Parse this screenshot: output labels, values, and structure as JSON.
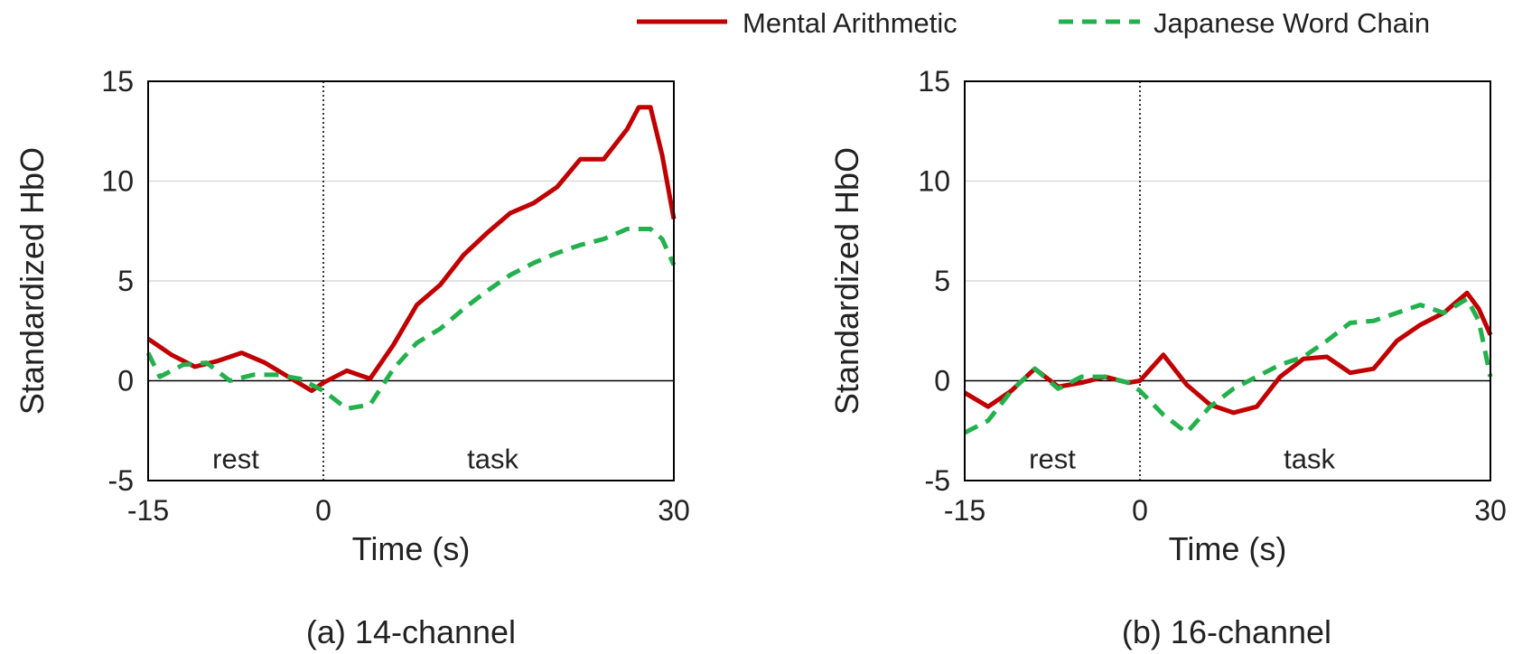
{
  "legend": {
    "placement": "top-right",
    "items": [
      {
        "label": "Mental Arithmetic",
        "color": "#c00000",
        "style": "solid"
      },
      {
        "label": "Japanese Word Chain",
        "color": "#22b14c",
        "style": "dashed"
      }
    ]
  },
  "colors": {
    "mental": "#c00000",
    "word": "#22b14c",
    "grid": "#d9d9d9",
    "axis": "#000000"
  },
  "chart_data": [
    {
      "type": "line",
      "caption": "(a) 14-channel",
      "xlabel": "Time (s)",
      "ylabel": "Standardized HbO",
      "xlim": [
        -15,
        30
      ],
      "ylim": [
        -5,
        15
      ],
      "xticks": [
        -15,
        0,
        30
      ],
      "xtick_labels": [
        "-15",
        "0",
        "30"
      ],
      "yticks": [
        -5,
        0,
        5,
        10,
        15
      ],
      "ytick_labels": [
        "-5",
        "0",
        "5",
        "10",
        "15"
      ],
      "grid": true,
      "divider_x": 0,
      "annotations": [
        {
          "text": "rest",
          "x": -7.5,
          "y": -3.9
        },
        {
          "text": "task",
          "x": 14.5,
          "y": -3.9
        }
      ],
      "series": [
        {
          "name": "Mental Arithmetic",
          "x": [
            -15,
            -13,
            -11,
            -9,
            -7,
            -5,
            -3,
            -1,
            0,
            2,
            4,
            6,
            8,
            10,
            12,
            14,
            16,
            18,
            20,
            22,
            24,
            26,
            27,
            28,
            29,
            30
          ],
          "y": [
            2.1,
            1.3,
            0.7,
            1.0,
            1.4,
            0.9,
            0.2,
            -0.5,
            -0.1,
            0.5,
            0.1,
            1.8,
            3.8,
            4.8,
            6.3,
            7.4,
            8.4,
            8.9,
            9.7,
            11.1,
            11.1,
            12.6,
            13.7,
            13.7,
            11.3,
            8.1
          ]
        },
        {
          "name": "Japanese Word Chain",
          "x": [
            -15,
            -14,
            -12,
            -10,
            -8,
            -6,
            -4,
            -2,
            0,
            2,
            4,
            6,
            8,
            10,
            12,
            14,
            16,
            18,
            20,
            22,
            24,
            26,
            28,
            29,
            30
          ],
          "y": [
            1.4,
            0.2,
            0.8,
            0.9,
            0.0,
            0.3,
            0.3,
            0.1,
            -0.5,
            -1.4,
            -1.2,
            0.6,
            1.9,
            2.6,
            3.6,
            4.5,
            5.3,
            5.9,
            6.4,
            6.8,
            7.1,
            7.6,
            7.6,
            7.1,
            5.8
          ]
        }
      ]
    },
    {
      "type": "line",
      "caption": "(b) 16-channel",
      "xlabel": "Time (s)",
      "ylabel": "Standardized HbO",
      "xlim": [
        -15,
        30
      ],
      "ylim": [
        -5,
        15
      ],
      "xticks": [
        -15,
        0,
        30
      ],
      "xtick_labels": [
        "-15",
        "0",
        "30"
      ],
      "yticks": [
        -5,
        0,
        5,
        10,
        15
      ],
      "ytick_labels": [
        "-5",
        "0",
        "5",
        "10",
        "15"
      ],
      "grid": true,
      "divider_x": 0,
      "annotations": [
        {
          "text": "rest",
          "x": -7.5,
          "y": -3.9
        },
        {
          "text": "task",
          "x": 14.5,
          "y": -3.9
        }
      ],
      "series": [
        {
          "name": "Mental Arithmetic",
          "x": [
            -15,
            -13,
            -11,
            -9,
            -7,
            -5,
            -3,
            -1,
            0,
            2,
            4,
            6,
            8,
            10,
            12,
            14,
            16,
            18,
            20,
            22,
            24,
            26,
            28,
            29,
            30
          ],
          "y": [
            -0.6,
            -1.3,
            -0.5,
            0.6,
            -0.3,
            -0.1,
            0.2,
            -0.1,
            0.0,
            1.3,
            -0.2,
            -1.2,
            -1.6,
            -1.3,
            0.2,
            1.1,
            1.2,
            0.4,
            0.6,
            2.0,
            2.8,
            3.4,
            4.4,
            3.6,
            2.3
          ]
        },
        {
          "name": "Japanese Word Chain",
          "x": [
            -15,
            -13,
            -11,
            -9,
            -7,
            -5,
            -3,
            -1,
            0,
            2,
            4,
            6,
            8,
            10,
            12,
            14,
            16,
            18,
            20,
            22,
            24,
            26,
            28,
            29,
            30
          ],
          "y": [
            -2.6,
            -2.0,
            -0.5,
            0.6,
            -0.4,
            0.2,
            0.2,
            -0.1,
            -0.5,
            -1.7,
            -2.6,
            -1.3,
            -0.4,
            0.2,
            0.8,
            1.2,
            2.0,
            2.9,
            3.0,
            3.4,
            3.8,
            3.4,
            4.1,
            3.0,
            0.2
          ]
        }
      ]
    }
  ]
}
